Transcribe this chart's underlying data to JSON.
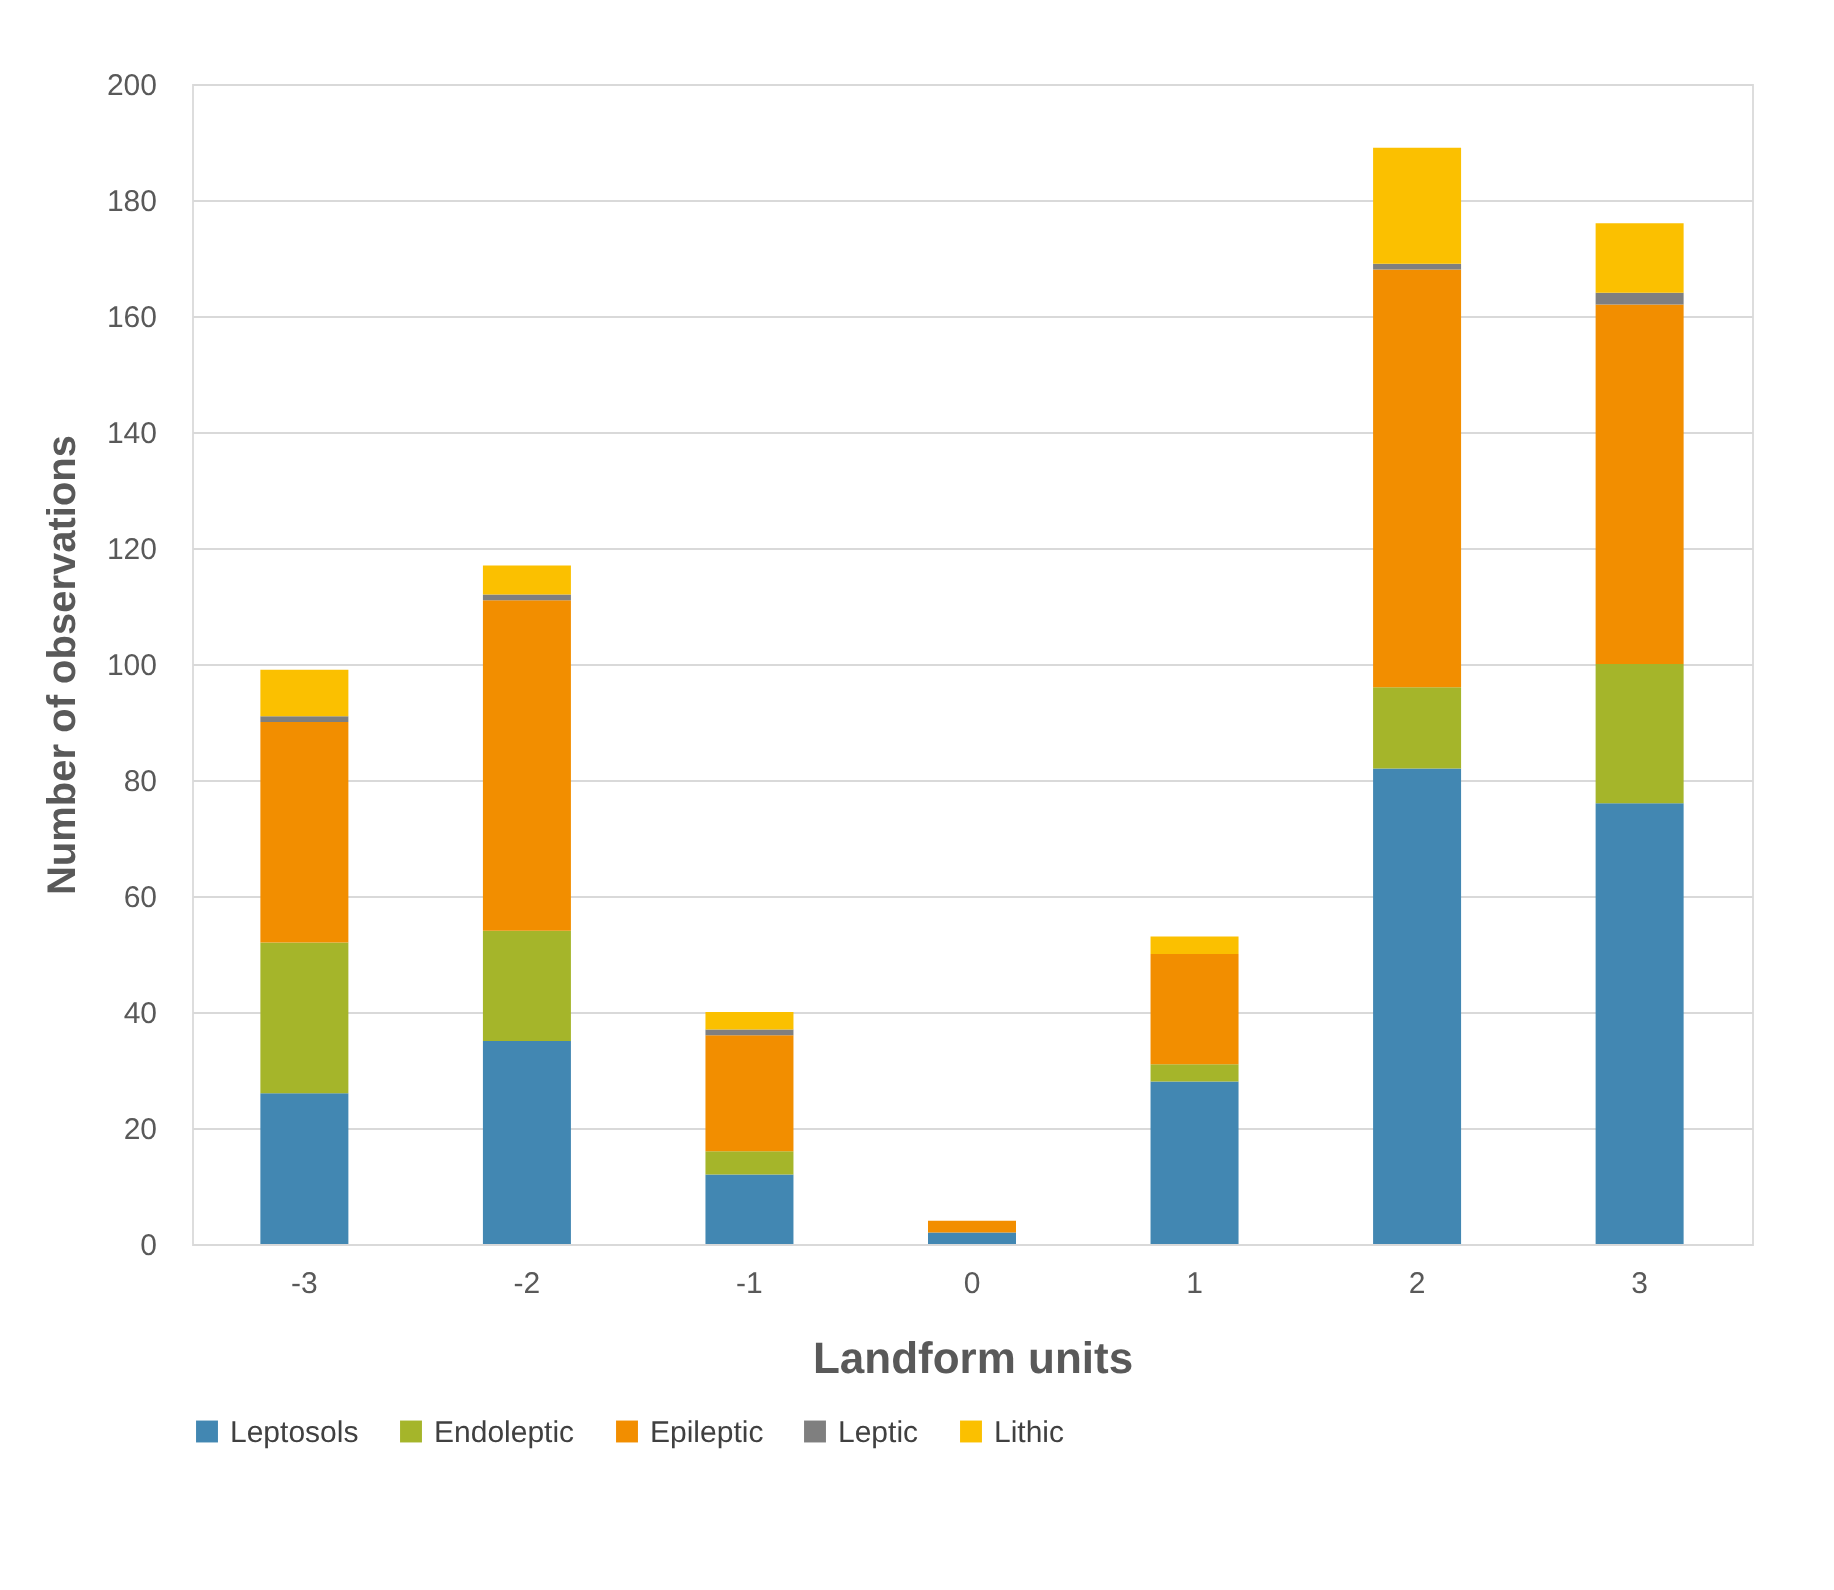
{
  "chart_data": {
    "type": "bar",
    "stacked": true,
    "xlabel": "Landform units",
    "ylabel": "Number of observations",
    "categories": [
      "-3",
      "-2",
      "-1",
      "0",
      "1",
      "2",
      "3"
    ],
    "series": [
      {
        "name": "Leptosols",
        "color": "#4287b2",
        "values": [
          26,
          35,
          12,
          2,
          28,
          82,
          76
        ]
      },
      {
        "name": "Endoleptic",
        "color": "#a5b52a",
        "values": [
          26,
          19,
          4,
          0,
          3,
          14,
          24
        ]
      },
      {
        "name": "Epileptic",
        "color": "#f28e00",
        "values": [
          38,
          57,
          20,
          2,
          19,
          72,
          62
        ]
      },
      {
        "name": "Leptic",
        "color": "#7f7f7f",
        "values": [
          1,
          1,
          1,
          0,
          0,
          1,
          2
        ]
      },
      {
        "name": "Lithic",
        "color": "#fbc000",
        "values": [
          8,
          5,
          3,
          0,
          3,
          20,
          12
        ]
      }
    ],
    "ylim": [
      0,
      200
    ],
    "yticks": [
      0,
      20,
      40,
      60,
      80,
      100,
      120,
      140,
      160,
      180,
      200
    ],
    "grid": "y",
    "legend": "bottom"
  }
}
